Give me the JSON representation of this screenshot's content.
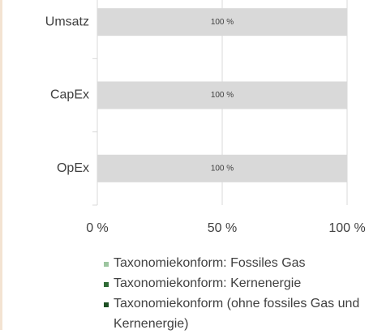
{
  "chart_data": {
    "type": "stacked-barh",
    "categories": [
      "Umsatz",
      "CapEx",
      "OpEx"
    ],
    "series": [
      {
        "name": "Taxonomiekonform: Fossiles Gas",
        "color": "#9cc59f",
        "values": [
          0,
          0,
          0
        ],
        "value_labels": [
          "%",
          "%",
          "%"
        ]
      },
      {
        "name": "Taxonomiekonform: Kernenergie",
        "color": "#2f6b35",
        "values": [
          0,
          0,
          0
        ]
      },
      {
        "name": "Taxonomiekonform (ohne fossiles Gas und Kernenergie)",
        "color": "#1d4f23",
        "values": [
          0,
          0,
          0
        ]
      },
      {
        "color": "#d9d9d9",
        "values": [
          100,
          100,
          100
        ],
        "value_labels": [
          "100 %",
          "100 %",
          "100 %"
        ]
      }
    ],
    "xlim": [
      0,
      100
    ],
    "xticks": [
      {
        "value": 0,
        "label": "0 %"
      },
      {
        "value": 50,
        "label": "50 %"
      },
      {
        "value": 100,
        "label": "100 %"
      }
    ],
    "grid": true
  }
}
